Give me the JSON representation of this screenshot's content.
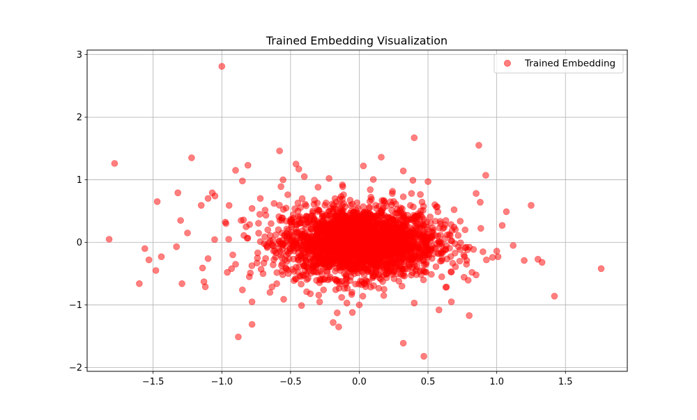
{
  "chart_data": {
    "type": "scatter",
    "title": "Trained Embedding Visualization",
    "xlabel": "",
    "ylabel": "",
    "xlim": [
      -1.98,
      1.95
    ],
    "ylim": [
      -2.06,
      3.07
    ],
    "xticks": [
      -1.5,
      -1.0,
      -0.5,
      0.0,
      0.5,
      1.0,
      1.5
    ],
    "xtick_labels": [
      "−1.5",
      "−1.0",
      "−0.5",
      "0.0",
      "0.5",
      "1.0",
      "1.5"
    ],
    "yticks": [
      -2,
      -1,
      0,
      1,
      2,
      3
    ],
    "ytick_labels": [
      "−2",
      "−1",
      "0",
      "1",
      "2",
      "3"
    ],
    "grid": true,
    "legend_position": "upper right",
    "series": [
      {
        "name": "Trained Embedding",
        "color": "#ff0000",
        "alpha": 0.5,
        "marker": "circle",
        "points": [
          [
            -1.0,
            2.81
          ],
          [
            0.4,
            1.67
          ],
          [
            0.87,
            1.55
          ],
          [
            -0.58,
            1.46
          ],
          [
            -1.78,
            1.26
          ],
          [
            -1.22,
            1.35
          ],
          [
            -0.46,
            1.25
          ],
          [
            -0.44,
            1.17
          ],
          [
            -0.81,
            1.23
          ],
          [
            -0.9,
            1.15
          ],
          [
            0.16,
            1.36
          ],
          [
            0.03,
            1.22
          ],
          [
            0.32,
            1.14
          ],
          [
            0.92,
            1.07
          ],
          [
            0.5,
            0.97
          ],
          [
            0.39,
            0.99
          ],
          [
            -0.22,
            1.02
          ],
          [
            -0.4,
            1.05
          ],
          [
            -1.32,
            0.79
          ],
          [
            -1.07,
            0.79
          ],
          [
            -1.05,
            0.74
          ],
          [
            -1.47,
            0.65
          ],
          [
            -0.85,
            0.98
          ],
          [
            -0.57,
            0.89
          ],
          [
            0.85,
            0.78
          ],
          [
            0.88,
            0.64
          ],
          [
            1.07,
            0.49
          ],
          [
            1.25,
            0.59
          ],
          [
            -1.82,
            0.05
          ],
          [
            -1.56,
            -0.1
          ],
          [
            -1.53,
            -0.28
          ],
          [
            -1.48,
            -0.45
          ],
          [
            -1.44,
            -0.23
          ],
          [
            -1.6,
            -0.66
          ],
          [
            -1.33,
            -0.07
          ],
          [
            -1.29,
            -0.66
          ],
          [
            -1.14,
            -0.41
          ],
          [
            -1.1,
            -0.26
          ],
          [
            -1.13,
            -0.63
          ],
          [
            -1.12,
            -0.71
          ],
          [
            -1.3,
            0.35
          ],
          [
            -1.15,
            0.59
          ],
          [
            -1.1,
            0.7
          ],
          [
            -1.25,
            0.15
          ],
          [
            -0.78,
            -0.95
          ],
          [
            -0.88,
            -1.51
          ],
          [
            -0.78,
            -1.31
          ],
          [
            -0.55,
            -0.91
          ],
          [
            -0.42,
            -1.01
          ],
          [
            -0.26,
            -0.76
          ],
          [
            -0.19,
            -1.28
          ],
          [
            -0.15,
            -1.35
          ],
          [
            -0.09,
            -0.97
          ],
          [
            -0.05,
            -1.12
          ],
          [
            0.0,
            -1.0
          ],
          [
            0.18,
            -0.75
          ],
          [
            0.32,
            -1.61
          ],
          [
            0.47,
            -1.82
          ],
          [
            0.58,
            -1.08
          ],
          [
            0.67,
            -0.95
          ],
          [
            0.8,
            -1.17
          ],
          [
            0.4,
            -0.97
          ],
          [
            1.42,
            -0.86
          ],
          [
            1.76,
            -0.42
          ],
          [
            1.33,
            -0.32
          ],
          [
            1.3,
            -0.27
          ],
          [
            1.2,
            -0.29
          ],
          [
            1.12,
            -0.05
          ],
          [
            1.01,
            -0.23
          ],
          [
            1.04,
            0.27
          ],
          [
            1.0,
            -0.14
          ],
          [
            0.97,
            -0.24
          ],
          [
            0.9,
            -0.15
          ],
          [
            0.85,
            -0.52
          ],
          [
            0.82,
            -0.48
          ],
          [
            0.78,
            -0.35
          ],
          [
            0.7,
            -0.39
          ],
          [
            0.6,
            -0.55
          ],
          [
            0.72,
            0.11
          ],
          [
            0.63,
            0.35
          ],
          [
            0.55,
            0.6
          ],
          [
            0.69,
            0.52
          ],
          [
            0.64,
            0.12
          ],
          [
            0.77,
            0.2
          ],
          [
            -0.96,
            -0.48
          ],
          [
            -0.9,
            -0.35
          ],
          [
            -0.85,
            -0.76
          ],
          [
            -0.8,
            -0.55
          ],
          [
            -0.7,
            -0.5
          ],
          [
            -0.65,
            -0.8
          ],
          [
            -0.6,
            -0.66
          ],
          [
            -0.92,
            -0.2
          ],
          [
            -0.95,
            0.05
          ],
          [
            -0.97,
            0.3
          ],
          [
            -0.86,
            0.35
          ],
          [
            -0.78,
            0.54
          ],
          [
            -0.72,
            0.7
          ],
          [
            -0.62,
            0.62
          ],
          [
            -0.52,
            0.76
          ],
          [
            -0.3,
            0.88
          ],
          [
            -0.12,
            0.89
          ],
          [
            0.08,
            0.84
          ],
          [
            0.24,
            0.78
          ],
          [
            0.38,
            0.78
          ]
        ]
      }
    ],
    "dense_cloud": {
      "count": 2600,
      "center": [
        0.0,
        0.0
      ],
      "std": [
        0.28,
        0.28
      ]
    }
  }
}
